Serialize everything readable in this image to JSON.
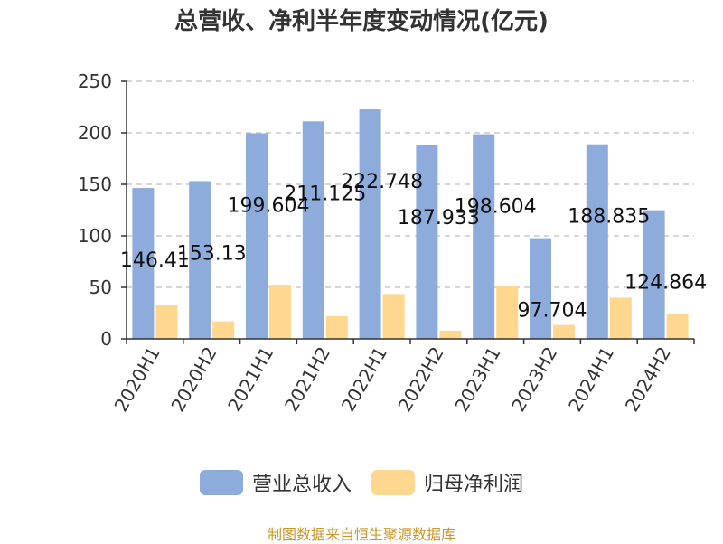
{
  "title": "总营收、净利半年度变动情况(亿元)",
  "source_note": "制图数据来自恒生聚源数据库",
  "colors": {
    "revenue": "#8eacdb",
    "profit": "#ffd78f",
    "grid": "#c8c8c8",
    "axis": "#333333"
  },
  "chart_data": {
    "type": "bar",
    "categories": [
      "2020H1",
      "2020H2",
      "2021H1",
      "2021H2",
      "2022H1",
      "2022H2",
      "2023H1",
      "2023H2",
      "2024H1",
      "2024H2"
    ],
    "series": [
      {
        "name": "营业总收入",
        "values": [
          146.41,
          153.13,
          199.604,
          211.125,
          222.748,
          187.933,
          198.604,
          97.704,
          188.835,
          124.864
        ],
        "labels": [
          "146.41",
          "153.13",
          "199.604",
          "211.125",
          "222.748",
          "187.933",
          "198.604",
          "97.704",
          "188.835",
          "124.864"
        ]
      },
      {
        "name": "归母净利润",
        "values": [
          33,
          17,
          52.5,
          22,
          43.5,
          8,
          51,
          13.5,
          40,
          24.5
        ]
      }
    ],
    "ylim": [
      0,
      250
    ],
    "yticks": [
      0,
      50,
      100,
      150,
      200,
      250
    ],
    "grid": true,
    "legend": "bottom"
  }
}
